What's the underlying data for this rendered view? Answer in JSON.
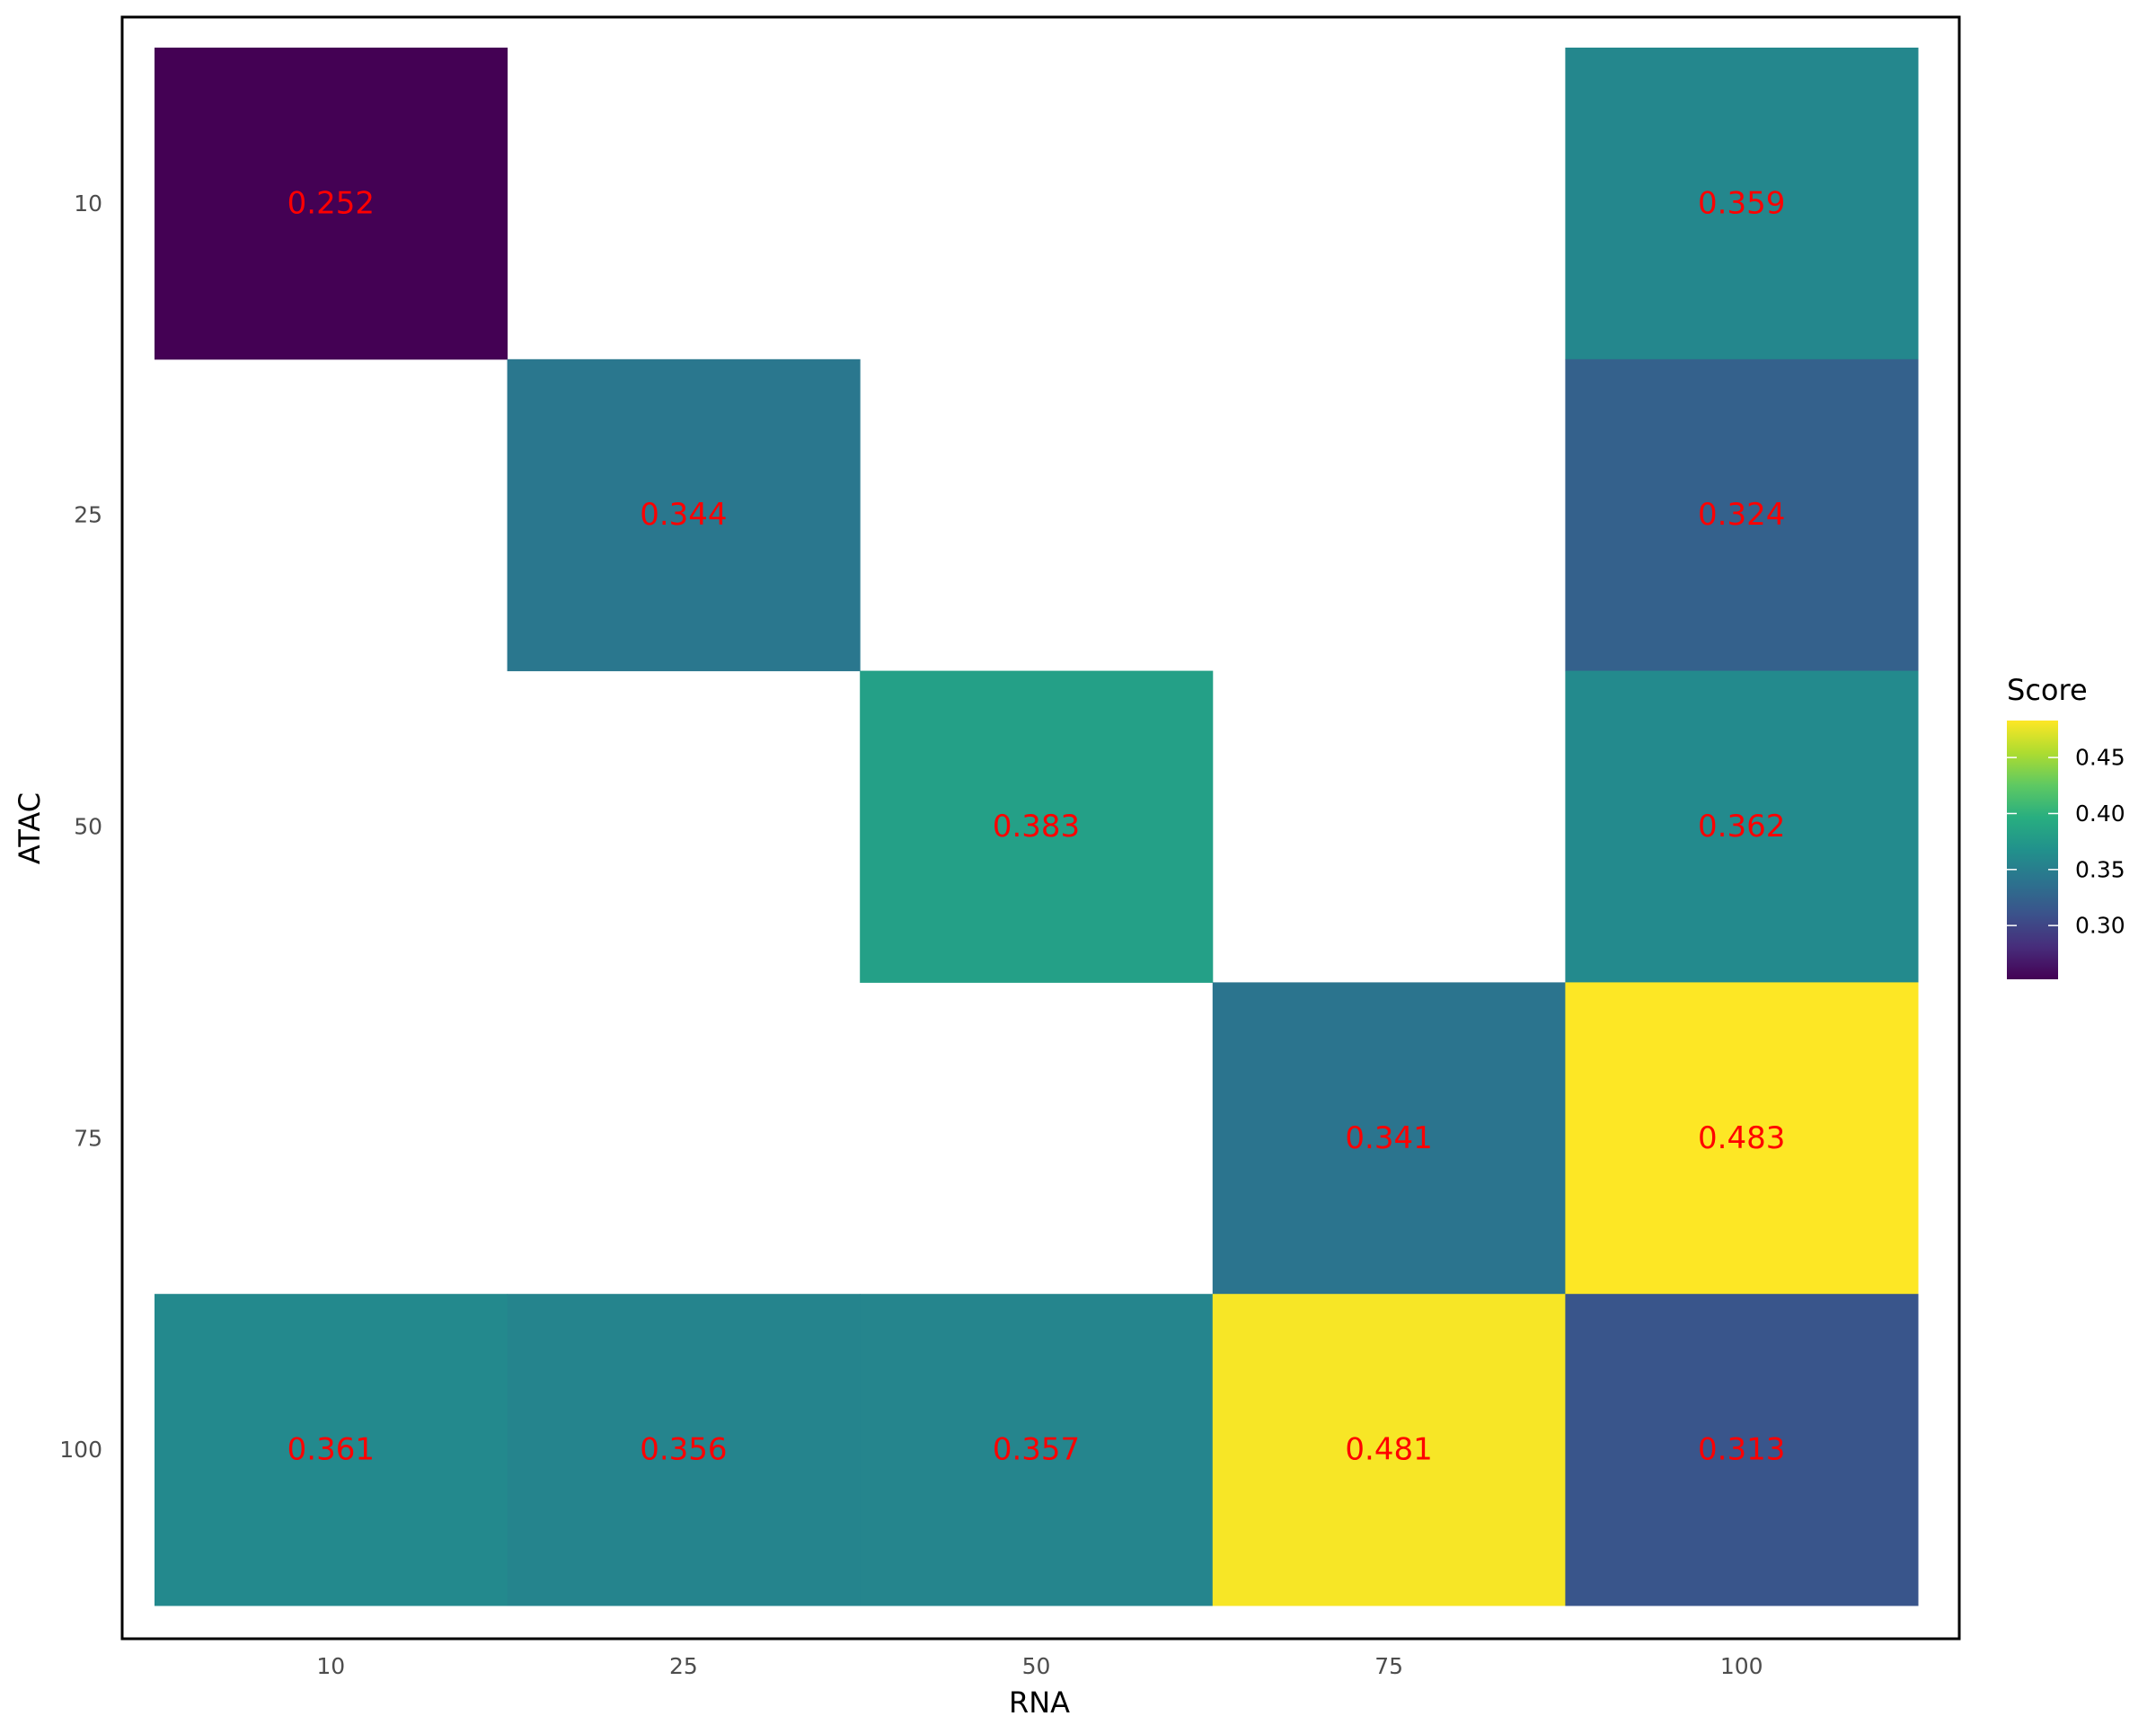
{
  "chart_data": {
    "type": "heatmap",
    "title": "",
    "xlabel": "RNA",
    "ylabel": "ATAC",
    "x_categories": [
      "10",
      "25",
      "50",
      "75",
      "100"
    ],
    "y_categories": [
      "10",
      "25",
      "50",
      "75",
      "100"
    ],
    "cells": [
      {
        "x": "10",
        "y": "10",
        "value": 0.252,
        "label": "0.252"
      },
      {
        "x": "100",
        "y": "10",
        "value": 0.359,
        "label": "0.359"
      },
      {
        "x": "25",
        "y": "25",
        "value": 0.344,
        "label": "0.344"
      },
      {
        "x": "100",
        "y": "25",
        "value": 0.324,
        "label": "0.324"
      },
      {
        "x": "50",
        "y": "50",
        "value": 0.383,
        "label": "0.383"
      },
      {
        "x": "100",
        "y": "50",
        "value": 0.362,
        "label": "0.362"
      },
      {
        "x": "75",
        "y": "75",
        "value": 0.341,
        "label": "0.341"
      },
      {
        "x": "100",
        "y": "75",
        "value": 0.483,
        "label": "0.483"
      },
      {
        "x": "10",
        "y": "100",
        "value": 0.361,
        "label": "0.361"
      },
      {
        "x": "25",
        "y": "100",
        "value": 0.356,
        "label": "0.356"
      },
      {
        "x": "50",
        "y": "100",
        "value": 0.357,
        "label": "0.357"
      },
      {
        "x": "75",
        "y": "100",
        "value": 0.481,
        "label": "0.481"
      },
      {
        "x": "100",
        "y": "100",
        "value": 0.313,
        "label": "0.313"
      }
    ],
    "legend": {
      "title": "Score",
      "placement": "right",
      "ticks": [
        0.3,
        0.35,
        0.4,
        0.45
      ],
      "tick_labels": [
        "0.30",
        "0.35",
        "0.40",
        "0.45"
      ],
      "range": [
        0.252,
        0.483
      ],
      "colormap": "viridis"
    },
    "grid": false,
    "colors": {
      "cell_label": "#ff0000",
      "panel_border": "#000000"
    }
  }
}
